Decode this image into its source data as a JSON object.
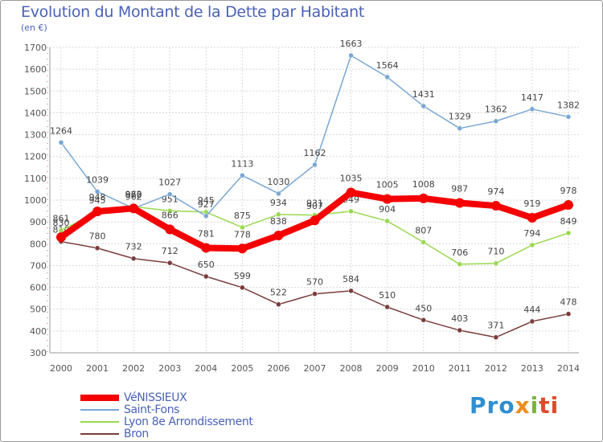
{
  "title": "Evolution du Montant de la Dette par Habitant",
  "subtitle": "(en €)",
  "logo": {
    "p1": "Pro",
    "p2": "x",
    "p3": "i",
    "p4": "ti"
  },
  "chart_data": {
    "type": "line",
    "title": "Evolution du Montant de la Dette par Habitant",
    "ylabel": "(en €)",
    "ylim": [
      300,
      1700
    ],
    "yticks": [
      300,
      400,
      500,
      600,
      700,
      800,
      900,
      1000,
      1100,
      1200,
      1300,
      1400,
      1500,
      1600,
      1700
    ],
    "grid": true,
    "legend_position": "bottom-left",
    "x": [
      "2000",
      "2001",
      "2002",
      "2003",
      "2004",
      "2005",
      "2006",
      "2007",
      "2008",
      "2009",
      "2010",
      "2011",
      "2012",
      "2013",
      "2014"
    ],
    "series": [
      {
        "name": "VéNISSIEUX",
        "color": "#f40000",
        "values": [
          830,
          948,
          962,
          866,
          781,
          778,
          838,
          907,
          1035,
          1005,
          1008,
          987,
          974,
          919,
          978
        ]
      },
      {
        "name": "Saint-Fons",
        "color": "#7aa7d2",
        "values": [
          1264,
          1039,
          962,
          1027,
          927,
          1113,
          1030,
          1162,
          1663,
          1564,
          1431,
          1329,
          1362,
          1417,
          1382
        ]
      },
      {
        "name": "Lyon 8e  Arrondissement",
        "color": "#9ad94f",
        "values": [
          861,
          945,
          970,
          951,
          945,
          875,
          934,
          931,
          949,
          904,
          807,
          706,
          710,
          794,
          849
        ]
      },
      {
        "name": "Bron",
        "color": "#7a3d3d",
        "values": [
          810,
          780,
          732,
          712,
          650,
          599,
          522,
          570,
          584,
          510,
          450,
          403,
          371,
          444,
          478
        ]
      }
    ]
  }
}
